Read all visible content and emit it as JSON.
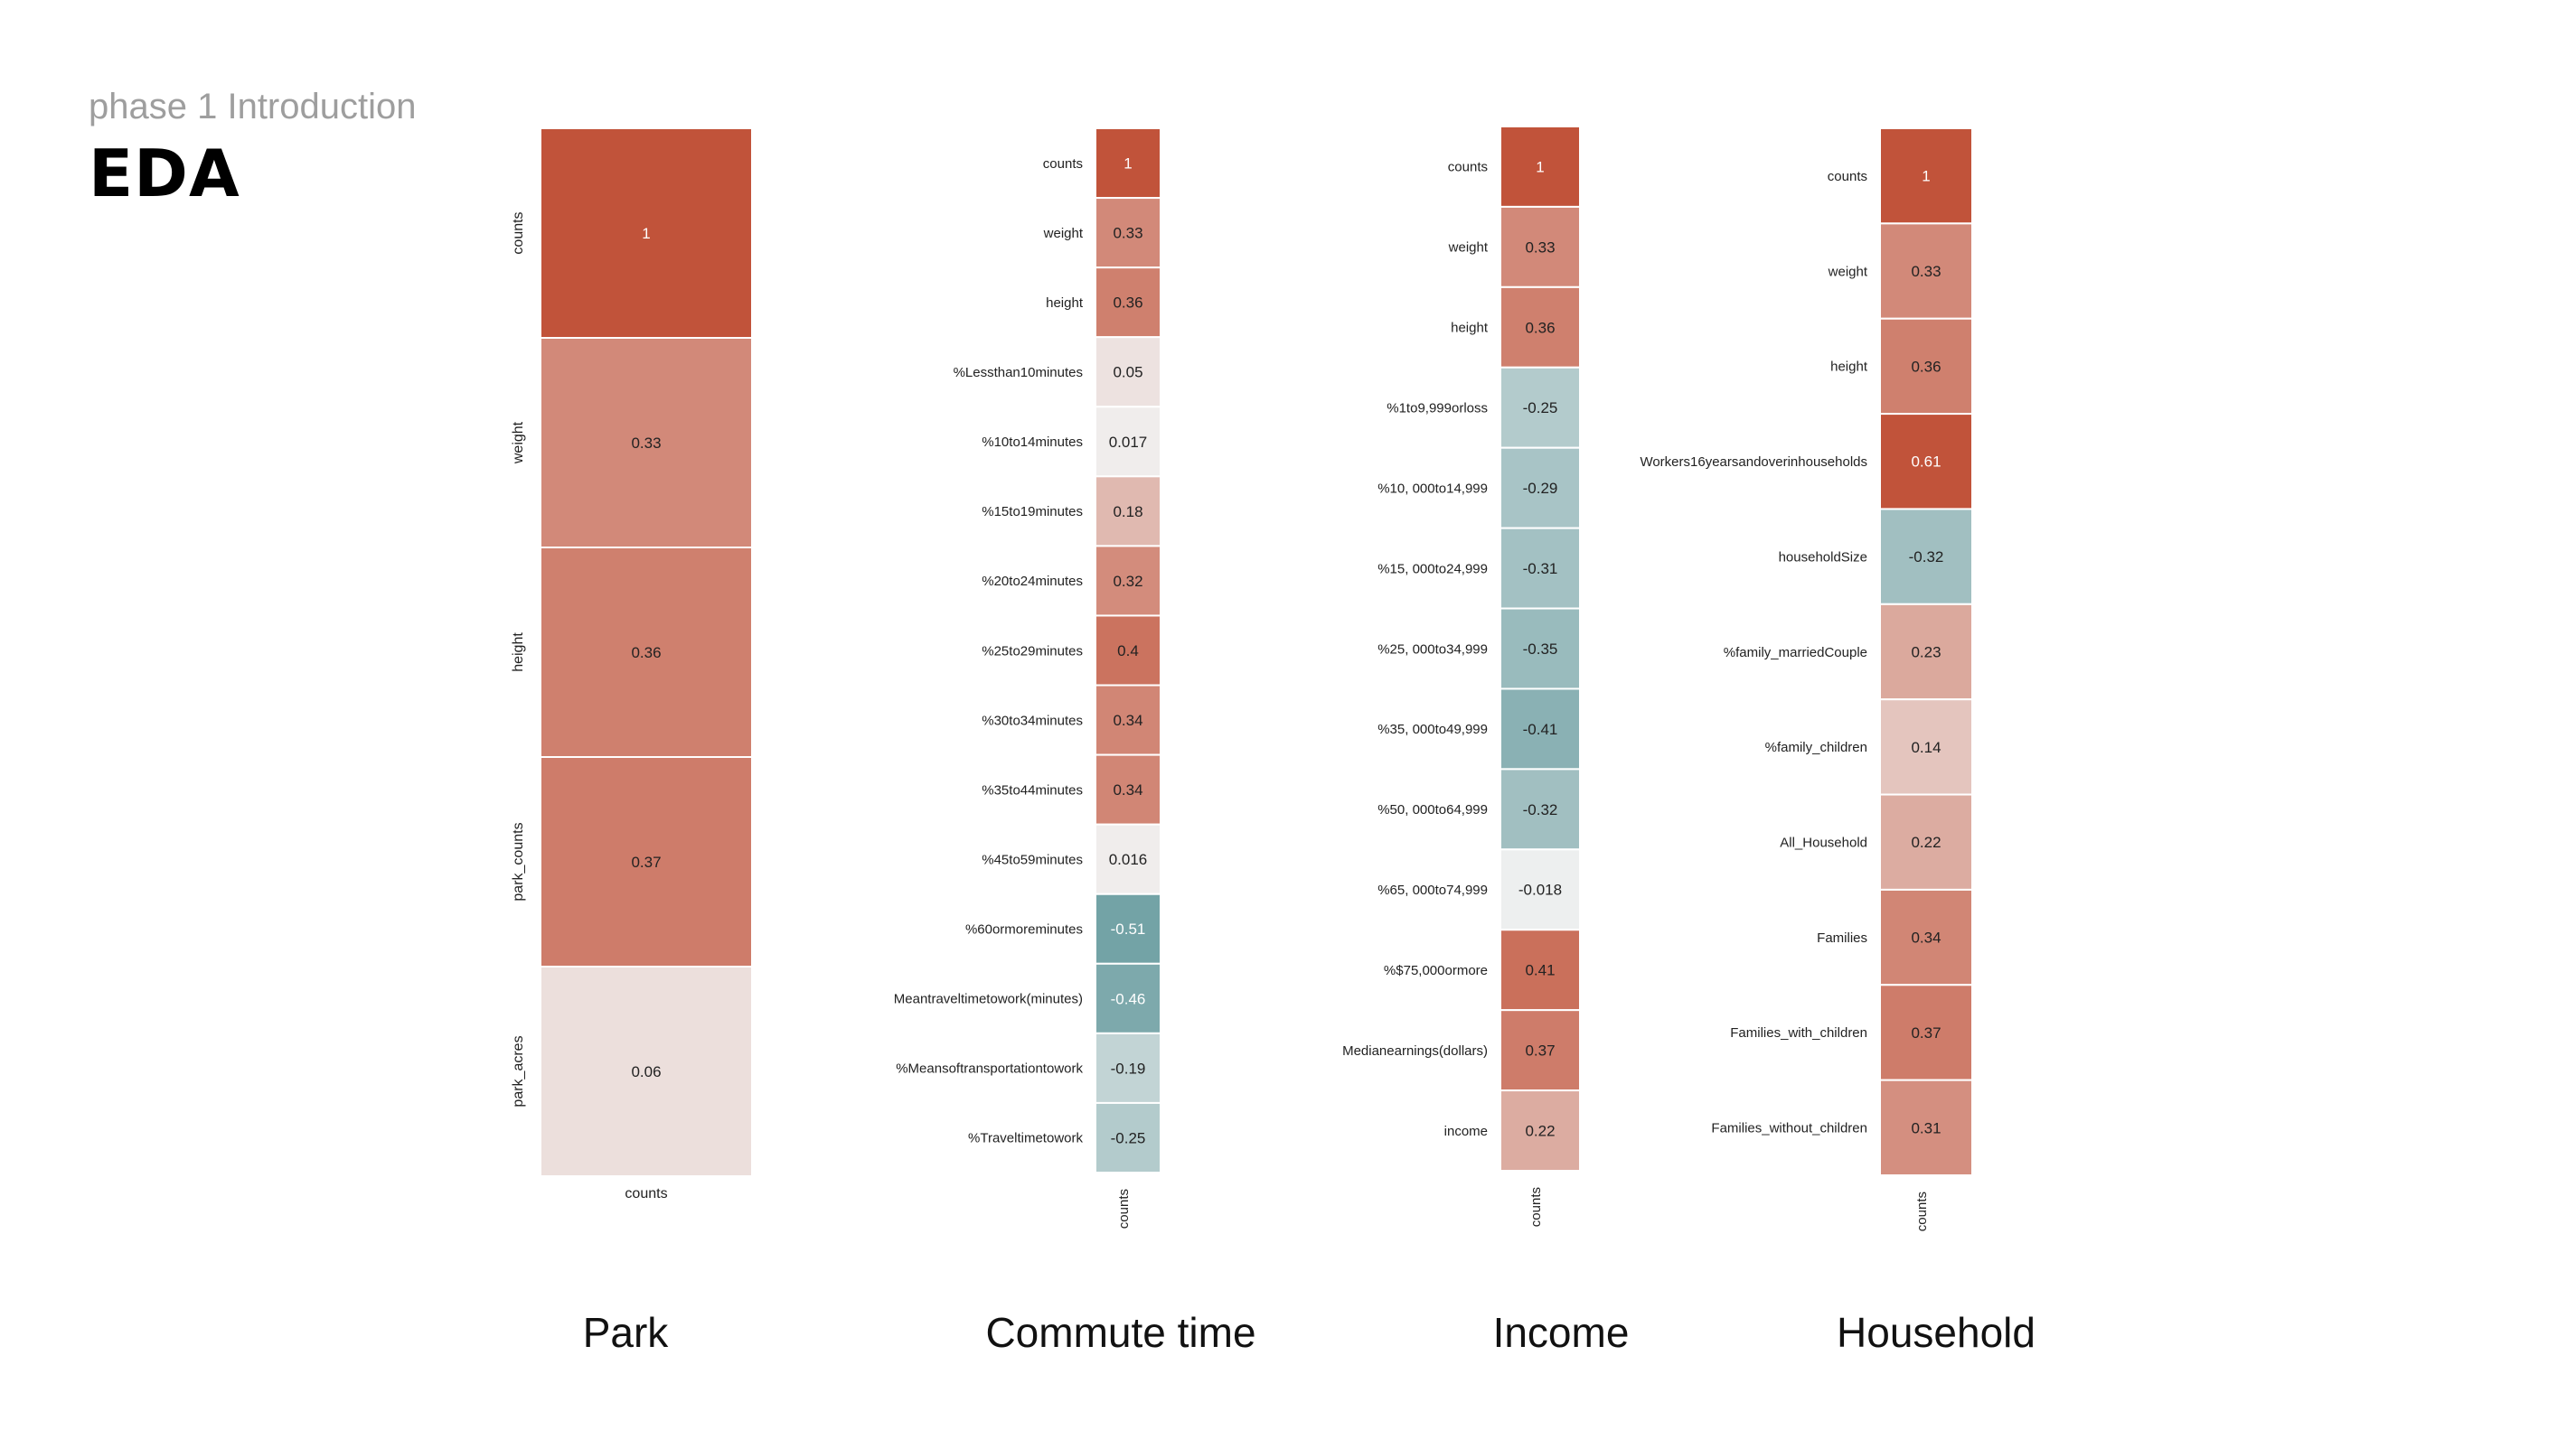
{
  "header": {
    "phase": "phase 1 Introduction",
    "title": "EDA"
  },
  "captions": [
    "Park",
    "Commute time",
    "Income",
    "Household"
  ],
  "palette": {
    "positive": "#c1533a",
    "neutral": "#f2f2f2",
    "negative": "#73a3a6"
  },
  "chart_data": [
    {
      "type": "heatmap",
      "caption": "Park",
      "column_label": "counts",
      "rows": [
        "counts",
        "weight",
        "height",
        "park_counts",
        "park_acres"
      ],
      "values": [
        1,
        0.33,
        0.36,
        0.37,
        0.06
      ],
      "value_labels": [
        "1",
        "0.33",
        "0.36",
        "0.37",
        "0.06"
      ]
    },
    {
      "type": "heatmap",
      "caption": "Commute time",
      "column_label": "counts",
      "rows": [
        "counts",
        "weight",
        "height",
        "%Lessthan10minutes",
        "%10to14minutes",
        "%15to19minutes",
        "%20to24minutes",
        "%25to29minutes",
        "%30to34minutes",
        "%35to44minutes",
        "%45to59minutes",
        "%60ormoreminutes",
        "Meantraveltimetowork(minutes)",
        "%Meansoftransportationtowork",
        "%Traveltimetowork"
      ],
      "values": [
        1,
        0.33,
        0.36,
        0.05,
        0.017,
        0.18,
        0.32,
        0.4,
        0.34,
        0.34,
        0.016,
        -0.51,
        -0.46,
        -0.19,
        -0.25
      ],
      "value_labels": [
        "1",
        "0.33",
        "0.36",
        "0.05",
        "0.017",
        "0.18",
        "0.32",
        "0.4",
        "0.34",
        "0.34",
        "0.016",
        "-0.51",
        "-0.46",
        "-0.19",
        "-0.25"
      ]
    },
    {
      "type": "heatmap",
      "caption": "Income",
      "column_label": "counts",
      "rows": [
        "counts",
        "weight",
        "height",
        "%1to9,999orloss",
        "%10, 000to14,999",
        "%15, 000to24,999",
        "%25, 000to34,999",
        "%35, 000to49,999",
        "%50, 000to64,999",
        "%65, 000to74,999",
        "%$75,000ormore",
        "Medianearnings(dollars)",
        "income"
      ],
      "values": [
        1,
        0.33,
        0.36,
        -0.25,
        -0.29,
        -0.31,
        -0.35,
        -0.41,
        -0.32,
        -0.018,
        0.41,
        0.37,
        0.22
      ],
      "value_labels": [
        "1",
        "0.33",
        "0.36",
        "-0.25",
        "-0.29",
        "-0.31",
        "-0.35",
        "-0.41",
        "-0.32",
        "-0.018",
        "0.41",
        "0.37",
        "0.22"
      ]
    },
    {
      "type": "heatmap",
      "caption": "Household",
      "column_label": "counts",
      "rows": [
        "counts",
        "weight",
        "height",
        "Workers16yearsandoverinhouseholds",
        "householdSize",
        "%family_marriedCouple",
        "%family_children",
        "All_Household",
        "Families",
        "Families_with_children",
        "Families_without_children"
      ],
      "values": [
        1,
        0.33,
        0.36,
        0.61,
        -0.32,
        0.23,
        0.14,
        0.22,
        0.34,
        0.37,
        0.31
      ],
      "value_labels": [
        "1",
        "0.33",
        "0.36",
        "0.61",
        "-0.32",
        "0.23",
        "0.14",
        "0.22",
        "0.34",
        "0.37",
        "0.31"
      ]
    }
  ]
}
